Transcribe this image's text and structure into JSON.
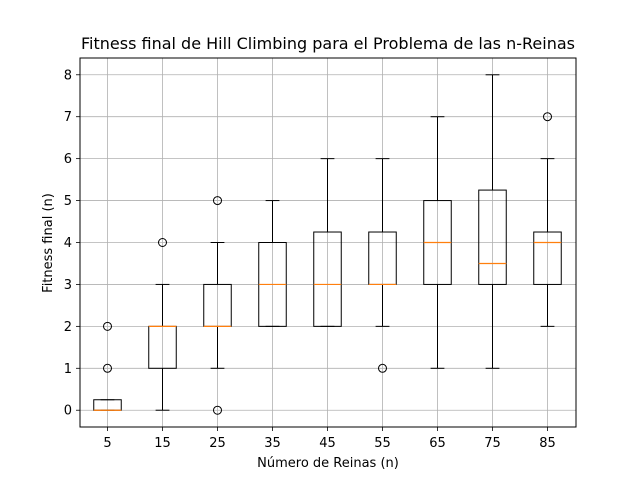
{
  "chart_data": {
    "type": "box",
    "title": "Fitness final de Hill Climbing para el Problema de las n-Reinas",
    "xlabel": "Número de Reinas (n)",
    "ylabel": "Fitness final (n)",
    "categories": [
      "5",
      "15",
      "25",
      "35",
      "45",
      "55",
      "65",
      "75",
      "85"
    ],
    "ylim": [
      -0.4,
      8.4
    ],
    "yticks": [
      0,
      1,
      2,
      3,
      4,
      5,
      6,
      7,
      8
    ],
    "grid": true,
    "boxes": [
      {
        "category": "5",
        "whisker_low": 0,
        "q1": 0,
        "median": 0,
        "q3": 0.25,
        "whisker_high": 0.25,
        "outliers": [
          1,
          2
        ]
      },
      {
        "category": "15",
        "whisker_low": 0,
        "q1": 1,
        "median": 2,
        "q3": 2,
        "whisker_high": 3,
        "outliers": [
          4
        ]
      },
      {
        "category": "25",
        "whisker_low": 1,
        "q1": 2,
        "median": 2,
        "q3": 3,
        "whisker_high": 4,
        "outliers": [
          0,
          5
        ]
      },
      {
        "category": "35",
        "whisker_low": 2,
        "q1": 2,
        "median": 3,
        "q3": 4,
        "whisker_high": 5,
        "outliers": []
      },
      {
        "category": "45",
        "whisker_low": 2,
        "q1": 2,
        "median": 3,
        "q3": 4.25,
        "whisker_high": 6,
        "outliers": []
      },
      {
        "category": "55",
        "whisker_low": 2,
        "q1": 3,
        "median": 3,
        "q3": 4.25,
        "whisker_high": 6,
        "outliers": [
          1
        ]
      },
      {
        "category": "65",
        "whisker_low": 1,
        "q1": 3,
        "median": 4,
        "q3": 5,
        "whisker_high": 7,
        "outliers": []
      },
      {
        "category": "75",
        "whisker_low": 1,
        "q1": 3,
        "median": 3.5,
        "q3": 5.25,
        "whisker_high": 8,
        "outliers": []
      },
      {
        "category": "85",
        "whisker_low": 2,
        "q1": 3,
        "median": 4,
        "q3": 4.25,
        "whisker_high": 6,
        "outliers": [
          7
        ]
      }
    ],
    "colors": {
      "box": "#000000",
      "median": "#ff7f0e",
      "grid": "#b0b0b0"
    }
  }
}
